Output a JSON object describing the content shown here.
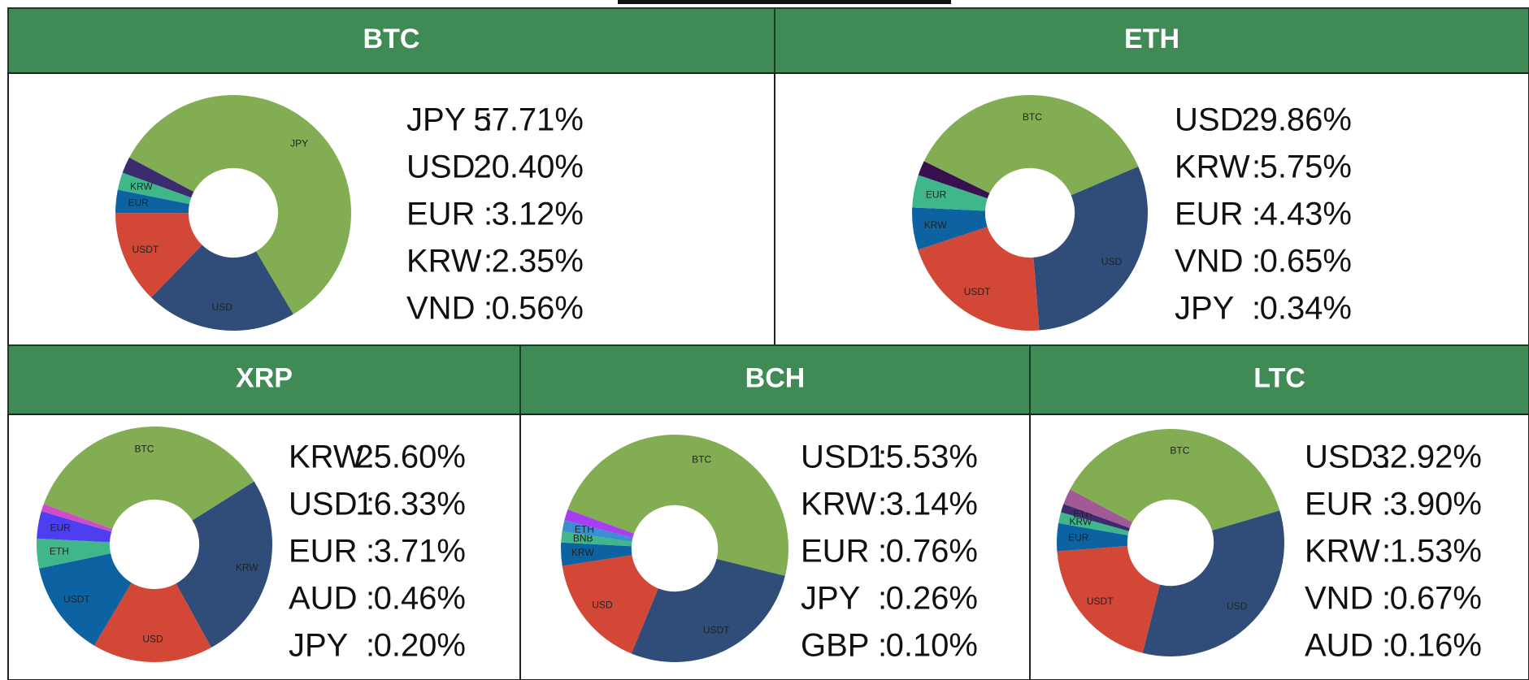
{
  "separator": ":",
  "chart_data": [
    {
      "type": "pie",
      "title": "BTC",
      "categories": [
        "JPY",
        "USD",
        "USDT",
        "EUR",
        "KRW",
        null
      ],
      "values": [
        57.71,
        20.4,
        12.5,
        3.12,
        2.35,
        2.2
      ],
      "colors": [
        "#83ad52",
        "#2f4d78",
        "#d24736",
        "#0d62a2",
        "#40b68b",
        "#3b2c70"
      ],
      "list": {
        "names": [
          "JPY",
          "USD",
          "EUR",
          "KRW",
          "VND"
        ],
        "values": [
          57.71,
          20.4,
          3.12,
          2.35,
          0.56
        ],
        "value_labels": [
          "57.71%",
          "20.40%",
          "3.12%",
          "2.35%",
          "0.56%"
        ]
      }
    },
    {
      "type": "pie",
      "title": "ETH",
      "categories": [
        "BTC",
        "USD",
        "USDT",
        "KRW",
        "EUR",
        null
      ],
      "values": [
        36,
        29.86,
        21,
        5.75,
        4.43,
        2
      ],
      "colors": [
        "#83ad52",
        "#2f4d78",
        "#d24736",
        "#0d62a2",
        "#40b68b",
        "#3a0f4f"
      ],
      "list": {
        "names": [
          "USD",
          "KRW",
          "EUR",
          "VND",
          "JPY"
        ],
        "values": [
          29.86,
          5.75,
          4.43,
          0.65,
          0.34
        ],
        "value_labels": [
          "29.86%",
          "5.75%",
          "4.43%",
          "0.65%",
          "0.34%"
        ]
      }
    },
    {
      "type": "pie",
      "title": "XRP",
      "categories": [
        "BTC",
        "KRW",
        "USD",
        "USDT",
        "ETH",
        "EUR",
        null
      ],
      "values": [
        35,
        25.6,
        16.33,
        13,
        4,
        3.71,
        1
      ],
      "colors": [
        "#83ad52",
        "#2f4d78",
        "#d24736",
        "#0d62a2",
        "#40b68b",
        "#4d3ff0",
        "#d24bc8"
      ],
      "list": {
        "names": [
          "KRW",
          "USD",
          "EUR",
          "AUD",
          "JPY"
        ],
        "values": [
          25.6,
          16.33,
          3.71,
          0.46,
          0.2
        ],
        "value_labels": [
          "25.60%",
          "16.33%",
          "3.71%",
          "0.46%",
          "0.20%"
        ]
      }
    },
    {
      "type": "pie",
      "title": "BCH",
      "categories": [
        "BTC",
        "USDT",
        "USD",
        "KRW",
        "BNB",
        "ETH",
        null
      ],
      "values": [
        46,
        26,
        15.53,
        3.14,
        1.5,
        1.5,
        1.5
      ],
      "colors": [
        "#83ad52",
        "#2f4d78",
        "#d24736",
        "#0d62a2",
        "#40b68b",
        "#3a8fd0",
        "#a73ff0"
      ],
      "list": {
        "names": [
          "USD",
          "KRW",
          "EUR",
          "JPY",
          "GBP"
        ],
        "values": [
          15.53,
          3.14,
          0.76,
          0.26,
          0.1
        ],
        "value_labels": [
          "15.53%",
          "3.14%",
          "0.76%",
          "0.26%",
          "0.10%"
        ]
      }
    },
    {
      "type": "pie",
      "title": "LTC",
      "categories": [
        "BTC",
        "USD",
        "USDT",
        "EUR",
        "KRW",
        "ETH",
        null
      ],
      "values": [
        37,
        32.92,
        19.5,
        3.9,
        1.53,
        1.2,
        2.2
      ],
      "colors": [
        "#83ad52",
        "#2f4d78",
        "#d24736",
        "#0d62a2",
        "#40b68b",
        "#3b2c70",
        "#a25a96"
      ],
      "list": {
        "names": [
          "USD",
          "EUR",
          "KRW",
          "VND",
          "AUD"
        ],
        "values": [
          32.92,
          3.9,
          1.53,
          0.67,
          0.16
        ],
        "value_labels": [
          "32.92%",
          "3.90%",
          "1.53%",
          "0.67%",
          "0.16%"
        ]
      }
    }
  ]
}
